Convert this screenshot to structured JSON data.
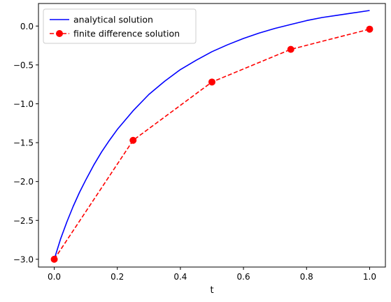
{
  "chart_data": {
    "type": "line",
    "xlabel": "t",
    "ylabel": "",
    "xlim": [
      -0.05,
      1.05
    ],
    "ylim": [
      -3.1,
      0.29
    ],
    "xticks": [
      0.0,
      0.2,
      0.4,
      0.6,
      0.8,
      1.0
    ],
    "xtick_labels": [
      "0.0",
      "0.2",
      "0.4",
      "0.6",
      "0.8",
      "1.0"
    ],
    "yticks": [
      -3.0,
      -2.5,
      -2.0,
      -1.5,
      -1.0,
      -0.5,
      0.0
    ],
    "ytick_labels": [
      "−3.0",
      "−2.5",
      "−2.0",
      "−1.5",
      "−1.0",
      "−0.5",
      "0.0"
    ],
    "grid": false,
    "legend_position": "top-left",
    "series": [
      {
        "name": "analytical solution",
        "color": "#0000ff",
        "style": "solid",
        "markers": false,
        "x": [
          0.0,
          0.02,
          0.04,
          0.06,
          0.08,
          0.1,
          0.125,
          0.15,
          0.175,
          0.2,
          0.25,
          0.3,
          0.35,
          0.4,
          0.45,
          0.5,
          0.55,
          0.6,
          0.65,
          0.7,
          0.75,
          0.8,
          0.85,
          0.9,
          0.95,
          1.0
        ],
        "y": [
          -3.0,
          -2.74,
          -2.52,
          -2.32,
          -2.14,
          -1.98,
          -1.79,
          -1.62,
          -1.47,
          -1.33,
          -1.09,
          -0.88,
          -0.71,
          -0.56,
          -0.44,
          -0.33,
          -0.24,
          -0.16,
          -0.09,
          -0.03,
          0.02,
          0.07,
          0.11,
          0.14,
          0.17,
          0.2
        ]
      },
      {
        "name": "finite difference solution",
        "color": "#ff0000",
        "style": "dashed",
        "markers": true,
        "x": [
          0.0,
          0.25,
          0.5,
          0.75,
          1.0
        ],
        "y": [
          -3.0,
          -1.47,
          -0.72,
          -0.3,
          -0.04
        ]
      }
    ]
  }
}
